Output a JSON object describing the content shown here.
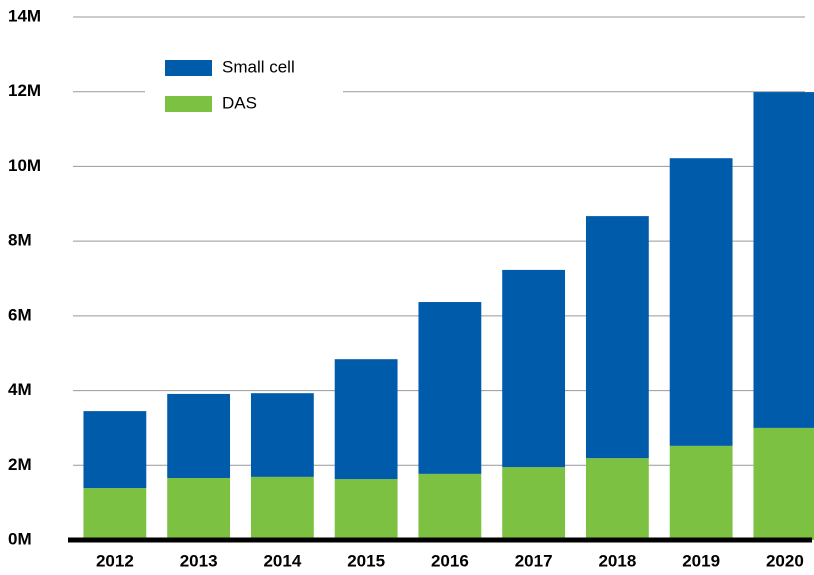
{
  "chart_data": {
    "type": "bar",
    "stacked": true,
    "categories": [
      "2012",
      "2013",
      "2014",
      "2015",
      "2016",
      "2017",
      "2018",
      "2019",
      "2020"
    ],
    "series": [
      {
        "name": "Small cell",
        "color": "#005baa",
        "values": [
          2.06,
          2.25,
          2.24,
          3.21,
          4.6,
          5.28,
          6.48,
          7.7,
          8.99
        ]
      },
      {
        "name": "DAS",
        "color": "#7dc142",
        "values": [
          1.39,
          1.66,
          1.69,
          1.63,
          1.77,
          1.95,
          2.19,
          2.52,
          3.0
        ]
      }
    ],
    "ylim": [
      0,
      14
    ],
    "yticks": [
      {
        "value": 0,
        "label": "0M"
      },
      {
        "value": 2,
        "label": "2M"
      },
      {
        "value": 4,
        "label": "4M"
      },
      {
        "value": 6,
        "label": "6M"
      },
      {
        "value": 8,
        "label": "8M"
      },
      {
        "value": 10,
        "label": "10M"
      },
      {
        "value": 12,
        "label": "12M"
      },
      {
        "value": 14,
        "label": "14M"
      }
    ],
    "grid": true,
    "legend": "upper left"
  }
}
